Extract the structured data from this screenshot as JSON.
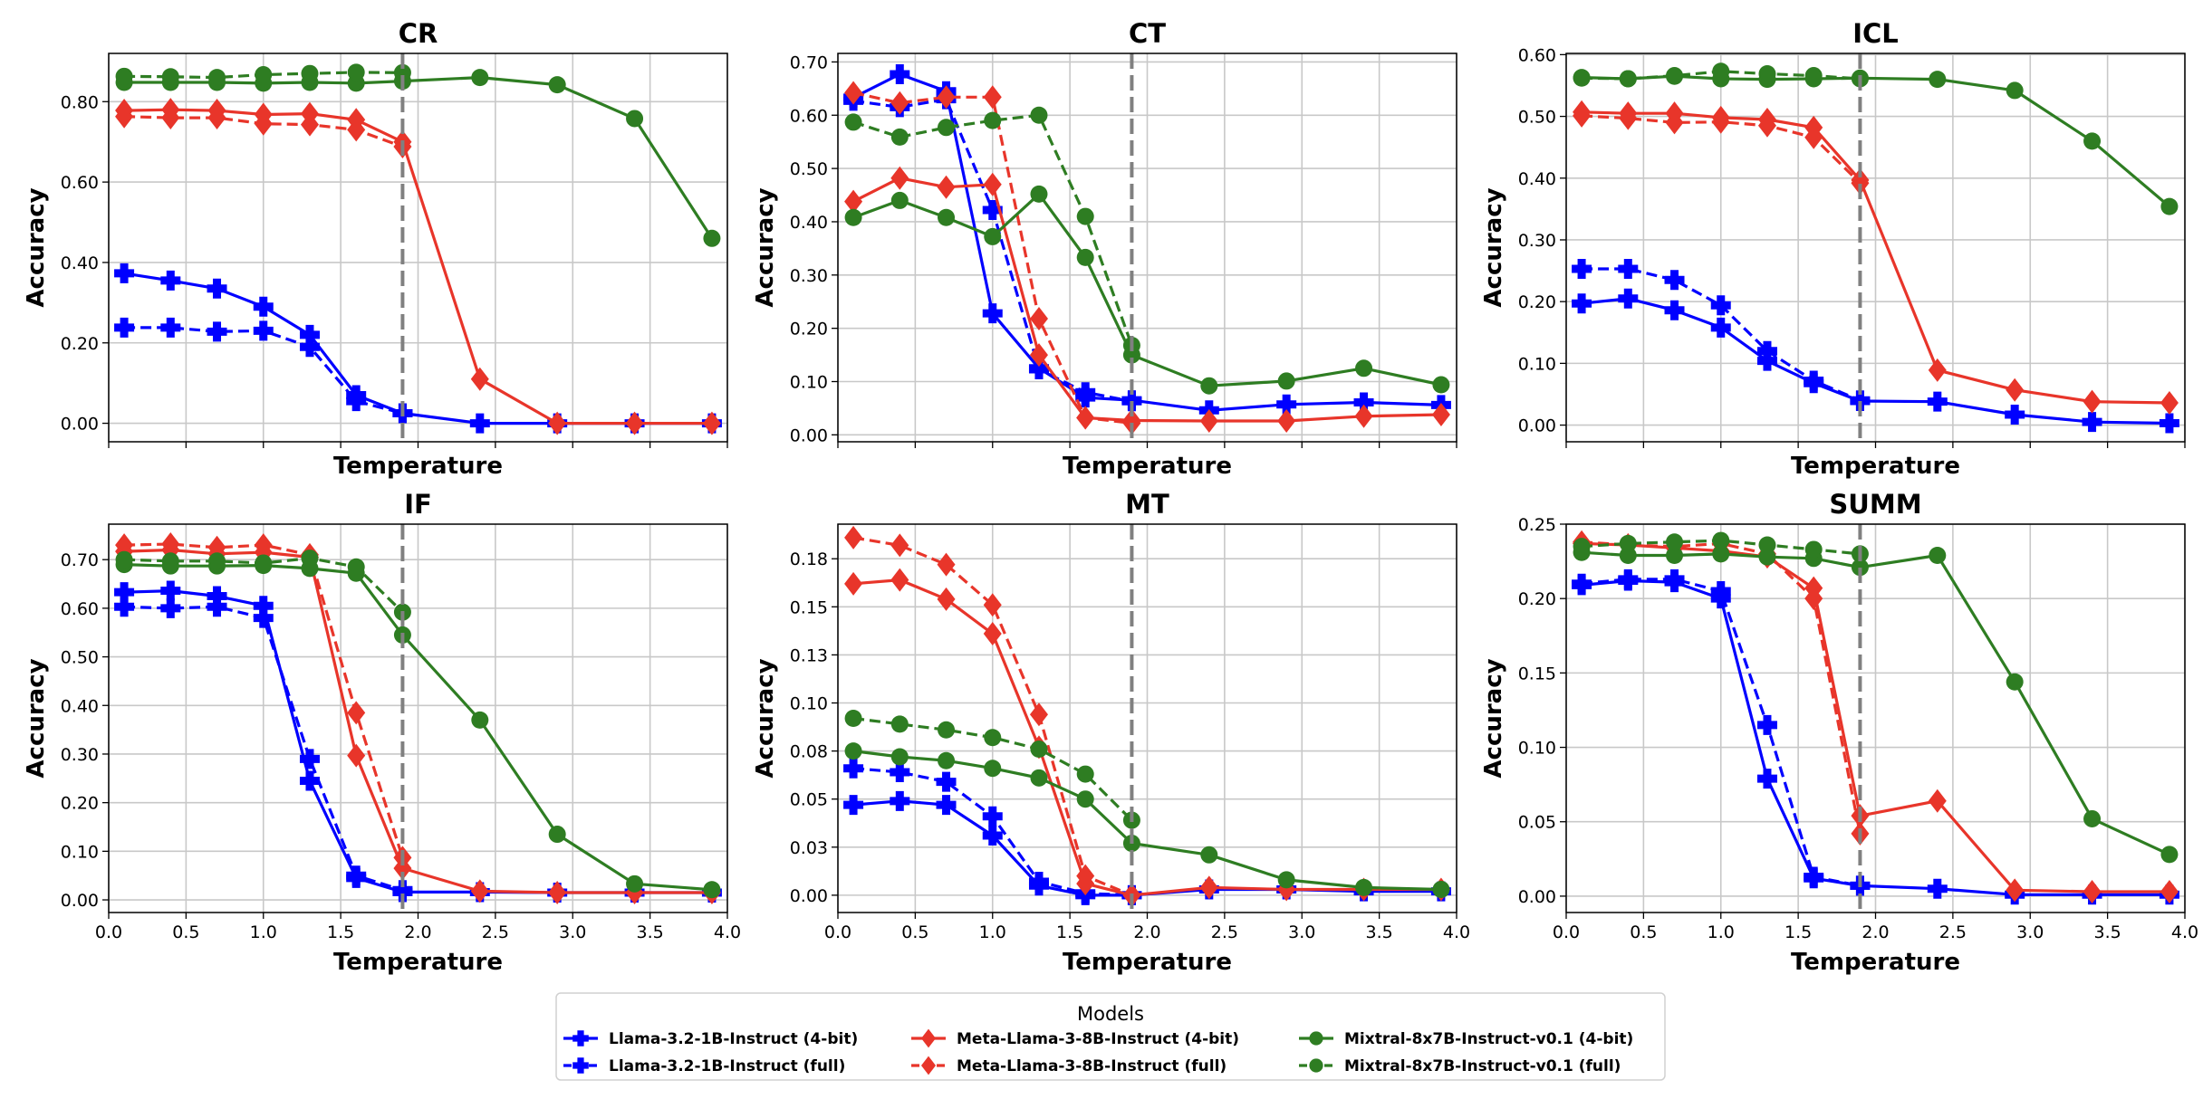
{
  "chart_data": {
    "type": "line",
    "legend": {
      "title": "Models",
      "placement": "bottom-center",
      "columns": 3
    },
    "series_styles": [
      {
        "name": "Llama-3.2-1B-Instruct (4-bit)",
        "color": "#0000ff",
        "linestyle": "solid",
        "marker": "plus"
      },
      {
        "name": "Llama-3.2-1B-Instruct (full)",
        "color": "#0000ff",
        "linestyle": "dashed",
        "marker": "plus"
      },
      {
        "name": "Meta-Llama-3-8B-Instruct (4-bit)",
        "color": "#e8352a",
        "linestyle": "solid",
        "marker": "diamond"
      },
      {
        "name": "Meta-Llama-3-8B-Instruct (full)",
        "color": "#e8352a",
        "linestyle": "dashed",
        "marker": "diamond"
      },
      {
        "name": "Mixtral-8x7B-Instruct-v0.1 (4-bit)",
        "color": "#2e7d22",
        "linestyle": "solid",
        "marker": "circle"
      },
      {
        "name": "Mixtral-8x7B-Instruct-v0.1 (full)",
        "color": "#2e7d22",
        "linestyle": "dashed",
        "marker": "circle"
      }
    ],
    "vline": {
      "x": 1.9,
      "color": "#808080",
      "linestyle": "dashed"
    },
    "grid": true,
    "x": [
      0.1,
      0.4,
      0.7,
      1.0,
      1.3,
      1.6,
      1.9,
      2.4,
      2.9,
      3.4,
      3.9
    ],
    "xlim": [
      0.0,
      4.0
    ],
    "xticks": [
      0.0,
      0.5,
      1.0,
      1.5,
      2.0,
      2.5,
      3.0,
      3.5,
      4.0
    ],
    "xtick_labels": [
      "0.0",
      "0.5",
      "1.0",
      "1.5",
      "2.0",
      "2.5",
      "3.0",
      "3.5",
      "4.0"
    ],
    "panels": [
      {
        "title": "CR",
        "xlabel": "Temperature",
        "ylabel": "Accuracy",
        "show_xtick_labels": false,
        "ylim": [
          -0.046,
          0.92
        ],
        "yticks": [
          0.0,
          0.2,
          0.4,
          0.6,
          0.8
        ],
        "ytick_labels": [
          "0.00",
          "0.20",
          "0.40",
          "0.60",
          "0.80"
        ],
        "series": [
          [
            0.373,
            0.355,
            0.335,
            0.29,
            0.22,
            0.07,
            0.025,
            0.0,
            0.0,
            0.0,
            0.0
          ],
          [
            0.238,
            0.238,
            0.228,
            0.23,
            0.19,
            0.055,
            0.025
          ],
          [
            0.778,
            0.78,
            0.778,
            0.768,
            0.77,
            0.755,
            0.7,
            0.11,
            0.0,
            0.0,
            0.0
          ],
          [
            0.763,
            0.76,
            0.76,
            0.745,
            0.743,
            0.73,
            0.688
          ],
          [
            0.848,
            0.848,
            0.848,
            0.846,
            0.848,
            0.846,
            0.851,
            0.86,
            0.842,
            0.758,
            0.46
          ],
          [
            0.863,
            0.862,
            0.86,
            0.867,
            0.87,
            0.873,
            0.872
          ]
        ]
      },
      {
        "title": "CT",
        "xlabel": "Temperature",
        "ylabel": "Accuracy",
        "show_xtick_labels": false,
        "ylim": [
          -0.013,
          0.716
        ],
        "yticks": [
          0.0,
          0.1,
          0.2,
          0.3,
          0.4,
          0.5,
          0.6,
          0.7
        ],
        "ytick_labels": [
          "0.00",
          "0.10",
          "0.20",
          "0.30",
          "0.40",
          "0.50",
          "0.60",
          "0.70"
        ],
        "series": [
          [
            0.633,
            0.677,
            0.645,
            0.228,
            0.125,
            0.07,
            0.065,
            0.046,
            0.057,
            0.061,
            0.056
          ],
          [
            0.627,
            0.615,
            0.63,
            0.422,
            0.123,
            0.08,
            0.063
          ],
          [
            0.438,
            0.482,
            0.465,
            0.47,
            0.15,
            0.032,
            0.027,
            0.026,
            0.026,
            0.035,
            0.038
          ],
          [
            0.642,
            0.623,
            0.634,
            0.634,
            0.218,
            0.032,
            0.022
          ],
          [
            0.408,
            0.44,
            0.408,
            0.372,
            0.452,
            0.333,
            0.15,
            0.092,
            0.101,
            0.125,
            0.094
          ],
          [
            0.587,
            0.559,
            0.577,
            0.59,
            0.6,
            0.41,
            0.168
          ]
        ]
      },
      {
        "title": "ICL",
        "xlabel": "Temperature",
        "ylabel": "Accuracy",
        "show_xtick_labels": false,
        "ylim": [
          -0.027,
          0.602
        ],
        "yticks": [
          0.0,
          0.1,
          0.2,
          0.3,
          0.4,
          0.5,
          0.6
        ],
        "ytick_labels": [
          "0.00",
          "0.10",
          "0.20",
          "0.30",
          "0.40",
          "0.50",
          "0.60"
        ],
        "series": [
          [
            0.197,
            0.205,
            0.186,
            0.158,
            0.104,
            0.068,
            0.039,
            0.038,
            0.017,
            0.005,
            0.003
          ],
          [
            0.253,
            0.253,
            0.235,
            0.194,
            0.12,
            0.072,
            0.04
          ],
          [
            0.507,
            0.505,
            0.505,
            0.498,
            0.495,
            0.482,
            0.397,
            0.089,
            0.057,
            0.038,
            0.036
          ],
          [
            0.501,
            0.497,
            0.49,
            0.491,
            0.485,
            0.466,
            0.392
          ],
          [
            0.563,
            0.561,
            0.565,
            0.561,
            0.56,
            0.561,
            0.562,
            0.56,
            0.542,
            0.46,
            0.354
          ],
          [
            0.562,
            0.561,
            0.566,
            0.573,
            0.569,
            0.566,
            0.561
          ]
        ]
      },
      {
        "title": "IF",
        "xlabel": "Temperature",
        "ylabel": "Accuracy",
        "show_xtick_labels": true,
        "ylim": [
          -0.026,
          0.773
        ],
        "yticks": [
          0.0,
          0.1,
          0.2,
          0.3,
          0.4,
          0.5,
          0.6,
          0.7
        ],
        "ytick_labels": [
          "0.00",
          "0.10",
          "0.20",
          "0.30",
          "0.40",
          "0.50",
          "0.60",
          "0.70"
        ],
        "series": [
          [
            0.633,
            0.636,
            0.625,
            0.605,
            0.245,
            0.045,
            0.016,
            0.016,
            0.015,
            0.015,
            0.015
          ],
          [
            0.603,
            0.6,
            0.603,
            0.58,
            0.29,
            0.05,
            0.02
          ],
          [
            0.717,
            0.72,
            0.712,
            0.715,
            0.705,
            0.297,
            0.065,
            0.018,
            0.015,
            0.015,
            0.015
          ],
          [
            0.73,
            0.732,
            0.725,
            0.73,
            0.71,
            0.385,
            0.087
          ],
          [
            0.69,
            0.687,
            0.687,
            0.688,
            0.682,
            0.672,
            0.545,
            0.37,
            0.135,
            0.033,
            0.021
          ],
          [
            0.7,
            0.697,
            0.697,
            0.693,
            0.703,
            0.685,
            0.592
          ]
        ]
      },
      {
        "title": "MT",
        "xlabel": "Temperature",
        "ylabel": "Accuracy",
        "show_xtick_labels": true,
        "ylim": [
          -0.009,
          0.193
        ],
        "yticks": [
          0.0,
          0.025,
          0.05,
          0.075,
          0.1,
          0.125,
          0.15,
          0.175
        ],
        "ytick_labels": [
          "0.00",
          "0.03",
          "0.05",
          "0.08",
          "0.10",
          "0.13",
          "0.15",
          "0.18"
        ],
        "series": [
          [
            0.047,
            0.049,
            0.047,
            0.031,
            0.005,
            0.0,
            0.0,
            0.003,
            0.003,
            0.002,
            0.002
          ],
          [
            0.066,
            0.064,
            0.059,
            0.041,
            0.007,
            0.001,
            0.0
          ],
          [
            0.162,
            0.164,
            0.154,
            0.136,
            0.077,
            0.006,
            0.0,
            0.004,
            0.003,
            0.003,
            0.003
          ],
          [
            0.186,
            0.182,
            0.172,
            0.151,
            0.094,
            0.01,
            0.0
          ],
          [
            0.075,
            0.072,
            0.07,
            0.066,
            0.061,
            0.05,
            0.027,
            0.021,
            0.008,
            0.004,
            0.003
          ],
          [
            0.092,
            0.089,
            0.086,
            0.082,
            0.076,
            0.063,
            0.039
          ]
        ]
      },
      {
        "title": "SUMM",
        "xlabel": "Temperature",
        "ylabel": "Accuracy",
        "show_xtick_labels": true,
        "ylim": [
          -0.011,
          0.25
        ],
        "yticks": [
          0.0,
          0.05,
          0.1,
          0.15,
          0.2,
          0.25
        ],
        "ytick_labels": [
          "0.00",
          "0.05",
          "0.10",
          "0.15",
          "0.20",
          "0.25"
        ],
        "series": [
          [
            0.209,
            0.212,
            0.211,
            0.2,
            0.079,
            0.012,
            0.007,
            0.005,
            0.001,
            0.001,
            0.001
          ],
          [
            0.21,
            0.213,
            0.213,
            0.205,
            0.115,
            0.013,
            0.007
          ],
          [
            0.237,
            0.236,
            0.234,
            0.232,
            0.228,
            0.207,
            0.054,
            0.064,
            0.004,
            0.003,
            0.003
          ],
          [
            0.238,
            0.236,
            0.235,
            0.237,
            0.23,
            0.2,
            0.042
          ],
          [
            0.231,
            0.229,
            0.229,
            0.23,
            0.228,
            0.227,
            0.221,
            0.229,
            0.144,
            0.052,
            0.028
          ],
          [
            0.235,
            0.237,
            0.238,
            0.239,
            0.236,
            0.233,
            0.23
          ]
        ]
      }
    ]
  }
}
